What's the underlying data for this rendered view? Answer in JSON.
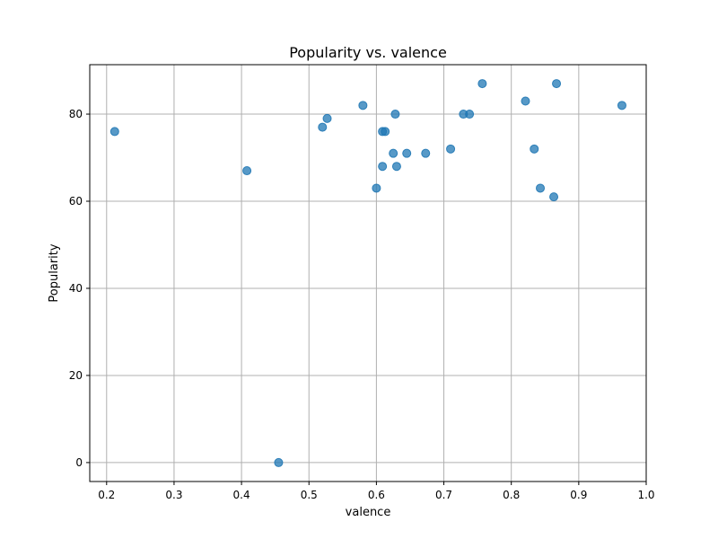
{
  "chart_data": {
    "type": "scatter",
    "title": "Popularity vs. valence",
    "xlabel": "valence",
    "ylabel": "Popularity",
    "xlim": [
      0.175,
      1.0
    ],
    "ylim": [
      -4.35,
      91.35
    ],
    "xticks": [
      "0.2",
      "0.3",
      "0.4",
      "0.5",
      "0.6",
      "0.7",
      "0.8",
      "0.9",
      "1.0"
    ],
    "yticks": [
      "0",
      "20",
      "40",
      "60",
      "80"
    ],
    "grid": true,
    "color": "#1f77b4",
    "points": [
      {
        "x": 0.212,
        "y": 76
      },
      {
        "x": 0.408,
        "y": 67
      },
      {
        "x": 0.455,
        "y": 0
      },
      {
        "x": 0.52,
        "y": 77
      },
      {
        "x": 0.527,
        "y": 79
      },
      {
        "x": 0.58,
        "y": 82
      },
      {
        "x": 0.6,
        "y": 63
      },
      {
        "x": 0.609,
        "y": 68
      },
      {
        "x": 0.609,
        "y": 76
      },
      {
        "x": 0.613,
        "y": 76
      },
      {
        "x": 0.625,
        "y": 71
      },
      {
        "x": 0.628,
        "y": 80
      },
      {
        "x": 0.63,
        "y": 68
      },
      {
        "x": 0.645,
        "y": 71
      },
      {
        "x": 0.673,
        "y": 71
      },
      {
        "x": 0.71,
        "y": 72
      },
      {
        "x": 0.729,
        "y": 80
      },
      {
        "x": 0.738,
        "y": 80
      },
      {
        "x": 0.757,
        "y": 87
      },
      {
        "x": 0.821,
        "y": 83
      },
      {
        "x": 0.834,
        "y": 72
      },
      {
        "x": 0.843,
        "y": 63
      },
      {
        "x": 0.863,
        "y": 61
      },
      {
        "x": 0.867,
        "y": 87
      },
      {
        "x": 0.964,
        "y": 82
      }
    ]
  }
}
